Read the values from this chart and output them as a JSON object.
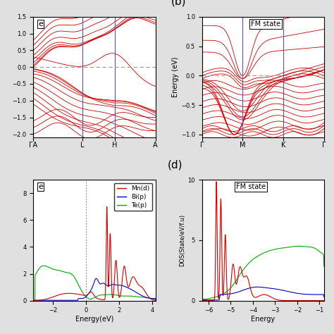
{
  "fig_bg": "#e8e8e8",
  "panel_bg": "#ffffff",
  "label_b": "(b)",
  "label_d": "(d)",
  "panel_b_title": "FM state",
  "panel_d_title": "FM state",
  "band_color": "#cc0000",
  "vline_color": "#5555bb",
  "hline_color": "#999999",
  "panel_b_ylabel": "Energy (eV)",
  "panel_b_ylim": [
    -1.05,
    1.0
  ],
  "panel_b_yticks": [
    -1.0,
    -0.5,
    0.0,
    0.5,
    1.0
  ],
  "panel_b_kpoints": [
    "Γ",
    "M",
    "K",
    "Γ"
  ],
  "panel_b_kpos": [
    0,
    1,
    2,
    3
  ],
  "panel_a_kpoints": [
    "ΓA",
    "L",
    "H",
    "A"
  ],
  "panel_a_kpos": [
    0,
    1.2,
    2.0,
    3.0
  ],
  "panel_a_vlines": [
    0,
    1.2,
    2.0
  ],
  "panel_c_xlabel": "Energy(eV)",
  "panel_c_xlim": [
    -3.2,
    4.2
  ],
  "panel_c_ylim": [
    0,
    9
  ],
  "panel_d_ylabel": "DOS(State/eV/f.u)",
  "panel_d_xlabel": "Energy",
  "panel_d_xlim": [
    -6.3,
    -0.8
  ],
  "panel_d_ylim": [
    0,
    10
  ],
  "panel_d_yticks": [
    0,
    5,
    10
  ],
  "legend_labels": [
    "Mn(d)",
    "Bi(p)",
    "Te(p)"
  ],
  "legend_colors": [
    "#cc0000",
    "#0000cc",
    "#00aa00"
  ],
  "seed": 42
}
